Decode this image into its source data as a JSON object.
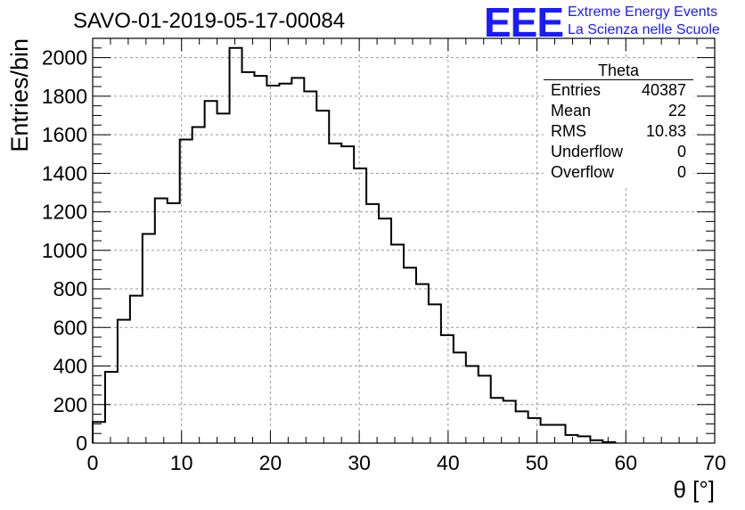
{
  "title": "SAVO-01-2019-05-17-00084",
  "logo": {
    "mark": "EEE",
    "line1": "Extreme Energy Events",
    "line2": "La Scienza nelle Scuole",
    "color": "#1a1aff"
  },
  "stats": {
    "name": "Theta",
    "rows": [
      {
        "label": "Entries",
        "value": "40387"
      },
      {
        "label": "Mean",
        "value": "22"
      },
      {
        "label": "RMS",
        "value": "10.83"
      },
      {
        "label": "Underflow",
        "value": "0"
      },
      {
        "label": "Overflow",
        "value": "0"
      }
    ]
  },
  "chart_data": {
    "type": "histogram",
    "title": "SAVO-01-2019-05-17-00084",
    "xlabel": "θ [°]",
    "ylabel": "Entries/bin",
    "xlim": [
      0,
      70
    ],
    "ylim": [
      0,
      2100
    ],
    "bin_width": 1.4,
    "x_ticks": [
      0,
      10,
      20,
      30,
      40,
      50,
      60,
      70
    ],
    "y_ticks": [
      0,
      200,
      400,
      600,
      800,
      1000,
      1200,
      1400,
      1600,
      1800,
      2000
    ],
    "grid": true,
    "bin_edges": [
      0,
      1.4,
      2.8,
      4.2,
      5.6,
      7.0,
      8.4,
      9.8,
      11.2,
      12.6,
      14.0,
      15.4,
      16.8,
      18.2,
      19.6,
      21.0,
      22.4,
      23.8,
      25.2,
      26.6,
      28.0,
      29.4,
      30.8,
      32.2,
      33.6,
      35.0,
      36.4,
      37.8,
      39.2,
      40.6,
      42.0,
      43.4,
      44.8,
      46.2,
      47.6,
      49.0,
      50.4,
      51.8,
      53.2,
      54.6,
      56.0,
      57.4,
      58.8
    ],
    "values": [
      110,
      370,
      640,
      765,
      1085,
      1270,
      1245,
      1575,
      1640,
      1775,
      1710,
      2050,
      1925,
      1905,
      1855,
      1865,
      1895,
      1825,
      1725,
      1555,
      1540,
      1425,
      1240,
      1165,
      1030,
      910,
      825,
      720,
      560,
      470,
      400,
      350,
      235,
      220,
      165,
      130,
      95,
      95,
      42,
      35,
      15,
      5
    ]
  }
}
